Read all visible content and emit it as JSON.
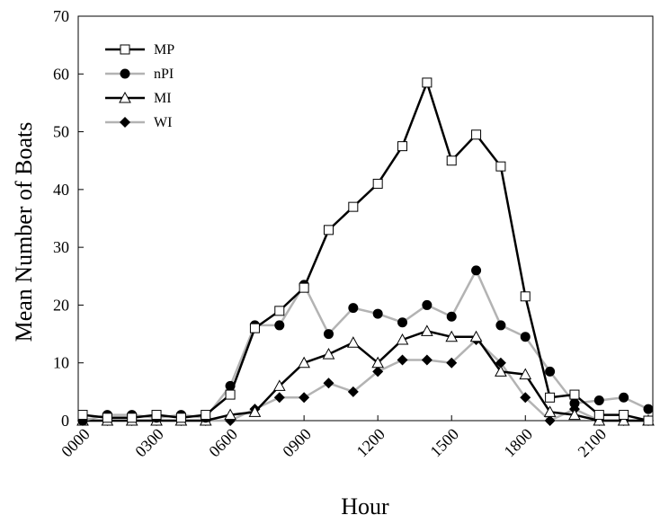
{
  "chart_data": {
    "type": "line",
    "title": "",
    "xlabel": "Hour",
    "ylabel": "Mean Number of Boats",
    "x": [
      0,
      100,
      200,
      300,
      400,
      500,
      600,
      700,
      800,
      900,
      1000,
      1100,
      1200,
      1300,
      1400,
      1500,
      1600,
      1700,
      1800,
      1900,
      2000,
      2100,
      2200,
      2300
    ],
    "xticks": [
      "0000",
      "0300",
      "0600",
      "0900",
      "1200",
      "1500",
      "1800",
      "2100"
    ],
    "ylim": [
      0,
      70
    ],
    "yticks": [
      "0",
      "10",
      "20",
      "30",
      "40",
      "50",
      "60",
      "70"
    ],
    "grid": false,
    "legend_position": "top-left",
    "series": [
      {
        "name": "MP",
        "color": "#000000",
        "marker": "square-open",
        "values": [
          1,
          0.5,
          0.5,
          1,
          0.5,
          1,
          4.5,
          16,
          19,
          23,
          33,
          37,
          41,
          47.5,
          58.5,
          45,
          49.5,
          44,
          21.5,
          4,
          4.5,
          1,
          1,
          0
        ]
      },
      {
        "name": "nPI",
        "color": "#b3b3b3",
        "marker": "circle-filled",
        "values": [
          0,
          1,
          1,
          0.5,
          1,
          0.5,
          6,
          16.5,
          16.5,
          23.5,
          15,
          19.5,
          18.5,
          17,
          20,
          18,
          26,
          16.5,
          14.5,
          8.5,
          3,
          3.5,
          4,
          2
        ]
      },
      {
        "name": "MI",
        "color": "#000000",
        "marker": "triangle-open",
        "values": [
          0,
          0,
          0,
          0,
          0,
          0,
          1,
          1.5,
          6,
          10,
          11.5,
          13.5,
          10,
          14,
          15.5,
          14.5,
          14.5,
          8.5,
          8,
          1.5,
          1,
          0,
          0,
          0
        ]
      },
      {
        "name": "WI",
        "color": "#b3b3b3",
        "marker": "diamond-filled",
        "values": [
          0,
          0,
          0,
          0,
          0,
          0,
          0,
          2,
          4,
          4,
          6.5,
          5,
          8.5,
          10.5,
          10.5,
          10,
          14,
          10,
          4,
          0,
          2,
          0,
          0,
          0
        ]
      }
    ]
  }
}
